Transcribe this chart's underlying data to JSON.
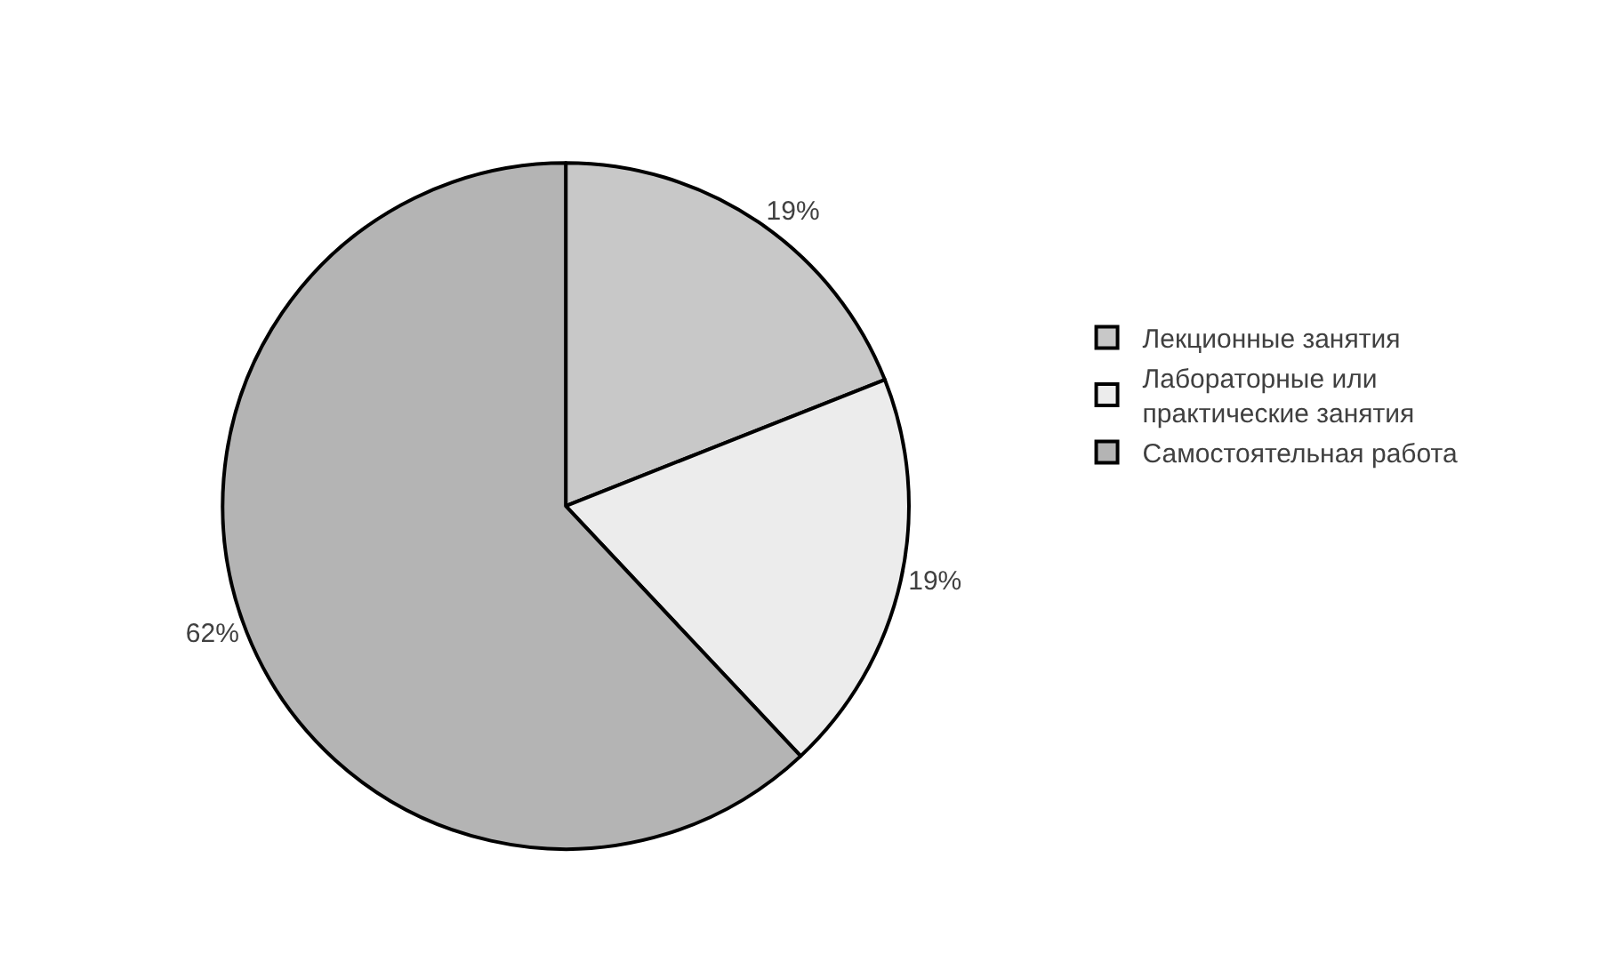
{
  "chart_data": {
    "type": "pie",
    "categories": [
      "Лекционные занятия",
      "Лабораторные или практические занятия",
      "Самостоятельная работа"
    ],
    "values": [
      19,
      19,
      62
    ],
    "colors": [
      "#c8c8c8",
      "#ececec",
      "#b4b4b4"
    ],
    "value_labels": [
      "19%",
      "19%",
      "62%"
    ],
    "legend": "right"
  }
}
